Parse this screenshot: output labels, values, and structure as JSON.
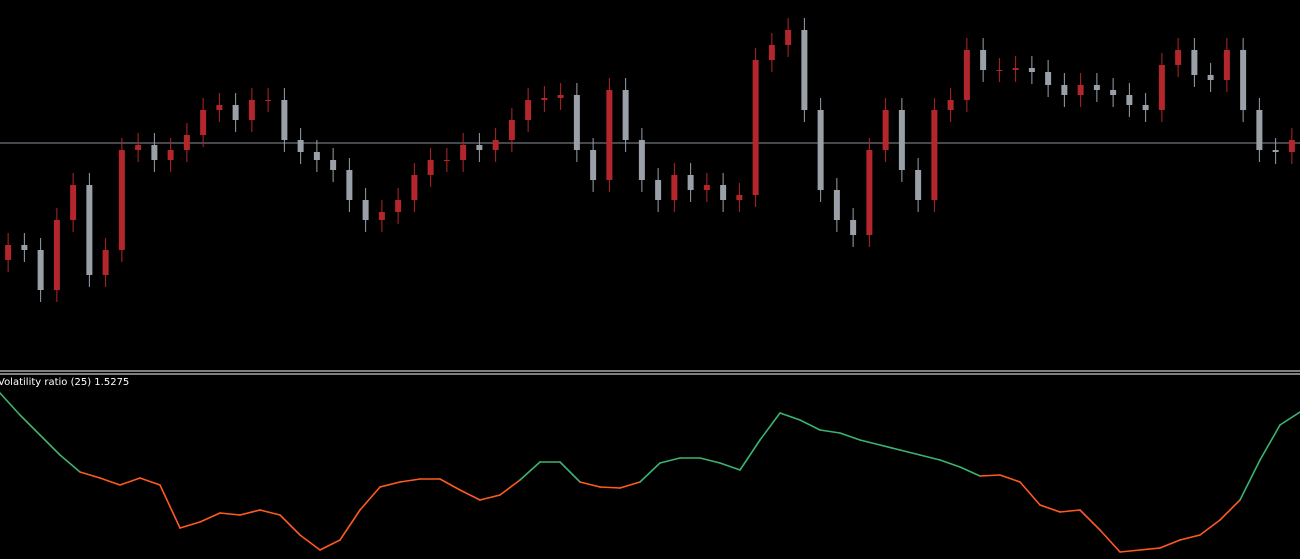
{
  "chart_data": [
    {
      "type": "candlestick",
      "ylim": [
        0,
        370
      ],
      "bull_color": "#b3262b",
      "bear_color": "#9aa0a8",
      "hline": 227,
      "hline_color": "#8a8f99",
      "open": [
        110,
        125,
        120,
        80,
        150,
        185,
        95,
        120,
        220,
        225,
        210,
        220,
        235,
        260,
        265,
        250,
        270,
        270,
        230,
        218,
        210,
        200,
        170,
        150,
        158,
        170,
        195,
        210,
        210,
        225,
        220,
        230,
        250,
        270,
        272,
        275,
        220,
        190,
        280,
        230,
        190,
        170,
        195,
        180,
        185,
        170,
        175,
        310,
        325,
        340,
        260,
        180,
        150,
        135,
        220,
        260,
        200,
        170,
        260,
        270,
        320,
        300,
        300,
        302,
        298,
        285,
        275,
        285,
        280,
        275,
        265,
        260,
        305,
        320,
        295,
        290,
        320,
        260,
        220,
        218
      ],
      "high": [
        137,
        137,
        132,
        162,
        197,
        197,
        132,
        232,
        237,
        237,
        232,
        247,
        272,
        277,
        277,
        282,
        282,
        282,
        242,
        230,
        222,
        212,
        182,
        170,
        182,
        207,
        222,
        222,
        237,
        237,
        242,
        262,
        282,
        284,
        287,
        287,
        232,
        292,
        292,
        242,
        202,
        207,
        207,
        197,
        197,
        187,
        322,
        337,
        352,
        352,
        272,
        192,
        162,
        232,
        272,
        272,
        212,
        272,
        282,
        332,
        332,
        312,
        314,
        314,
        310,
        297,
        297,
        297,
        292,
        287,
        277,
        317,
        332,
        332,
        307,
        332,
        332,
        272,
        232,
        242
      ],
      "low": [
        98,
        108,
        68,
        68,
        138,
        83,
        83,
        108,
        208,
        198,
        198,
        208,
        223,
        248,
        238,
        238,
        258,
        218,
        206,
        198,
        188,
        158,
        138,
        138,
        146,
        158,
        183,
        198,
        198,
        208,
        208,
        218,
        238,
        258,
        260,
        208,
        178,
        178,
        218,
        178,
        158,
        158,
        168,
        168,
        158,
        158,
        163,
        298,
        313,
        248,
        168,
        138,
        123,
        123,
        208,
        188,
        158,
        158,
        248,
        258,
        288,
        288,
        288,
        286,
        273,
        263,
        263,
        268,
        263,
        253,
        248,
        248,
        293,
        283,
        278,
        278,
        248,
        208,
        206,
        206
      ],
      "close": [
        125,
        120,
        80,
        150,
        185,
        95,
        120,
        220,
        225,
        210,
        220,
        235,
        260,
        265,
        250,
        270,
        270,
        230,
        218,
        210,
        200,
        170,
        150,
        158,
        170,
        195,
        210,
        210,
        225,
        220,
        230,
        250,
        270,
        272,
        275,
        220,
        190,
        280,
        230,
        190,
        170,
        195,
        180,
        185,
        170,
        175,
        310,
        325,
        340,
        260,
        180,
        150,
        135,
        220,
        260,
        200,
        170,
        260,
        270,
        320,
        300,
        300,
        302,
        298,
        285,
        275,
        285,
        280,
        275,
        265,
        260,
        305,
        320,
        295,
        290,
        320,
        260,
        220,
        218,
        230
      ]
    },
    {
      "type": "line",
      "title": "Volatility ratio (25) 1.5275",
      "ylim": [
        0,
        181
      ],
      "values": [
        166,
        144,
        124,
        104,
        87,
        81,
        74,
        81,
        74,
        31,
        37,
        46,
        44,
        49,
        44,
        24,
        9,
        19,
        49,
        72,
        77,
        80,
        80,
        69,
        59,
        64,
        79,
        97,
        97,
        77,
        72,
        71,
        77,
        96,
        101,
        101,
        96,
        89,
        119,
        146,
        139,
        129,
        126,
        119,
        114,
        109,
        104,
        99,
        92,
        83,
        84,
        77,
        54,
        47,
        49,
        29,
        7,
        9,
        11,
        19,
        24,
        39,
        59,
        99,
        134,
        147
      ],
      "colors": [
        "#3cb371",
        "#3cb371",
        "#3cb371",
        "#3cb371",
        "#ff5a1f",
        "#ff5a1f",
        "#ff5a1f",
        "#ff5a1f",
        "#ff5a1f",
        "#ff5a1f",
        "#ff5a1f",
        "#ff5a1f",
        "#ff5a1f",
        "#ff5a1f",
        "#ff5a1f",
        "#ff5a1f",
        "#ff5a1f",
        "#ff5a1f",
        "#ff5a1f",
        "#ff5a1f",
        "#ff5a1f",
        "#ff5a1f",
        "#ff5a1f",
        "#ff5a1f",
        "#ff5a1f",
        "#ff5a1f",
        "#3cb371",
        "#3cb371",
        "#3cb371",
        "#ff5a1f",
        "#ff5a1f",
        "#ff5a1f",
        "#3cb371",
        "#3cb371",
        "#3cb371",
        "#3cb371",
        "#3cb371",
        "#3cb371",
        "#3cb371",
        "#3cb371",
        "#3cb371",
        "#3cb371",
        "#3cb371",
        "#3cb371",
        "#3cb371",
        "#3cb371",
        "#3cb371",
        "#3cb371",
        "#3cb371",
        "#ff5a1f",
        "#ff5a1f",
        "#ff5a1f",
        "#ff5a1f",
        "#ff5a1f",
        "#ff5a1f",
        "#ff5a1f",
        "#ff5a1f",
        "#ff5a1f",
        "#ff5a1f",
        "#ff5a1f",
        "#ff5a1f",
        "#ff5a1f",
        "#3cb371",
        "#3cb371",
        "#3cb371",
        "#3cb371"
      ]
    }
  ]
}
